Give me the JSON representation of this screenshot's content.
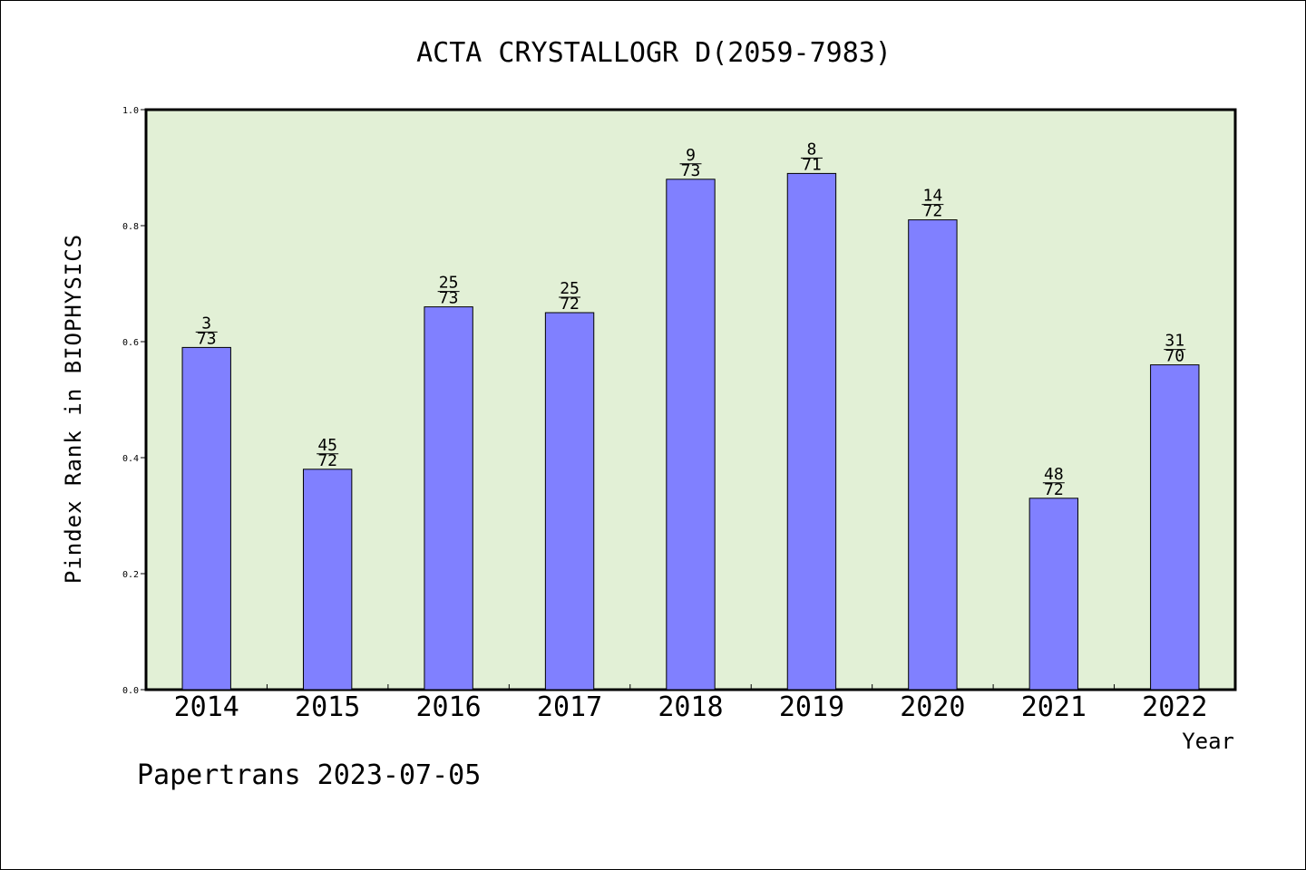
{
  "chart_data": {
    "type": "bar",
    "title": "ACTA CRYSTALLOGR D(2059-7983)",
    "xlabel": "Year",
    "ylabel": "Pindex Rank in BIOPHYSICS",
    "ylim": [
      0,
      1.0
    ],
    "yticks": [
      "0.0",
      "0.2",
      "0.4",
      "0.6",
      "0.8",
      "1.0"
    ],
    "grid": false,
    "categories": [
      "2014",
      "2015",
      "2016",
      "2017",
      "2018",
      "2019",
      "2020",
      "2021",
      "2022"
    ],
    "values": [
      0.59,
      0.38,
      0.66,
      0.65,
      0.88,
      0.89,
      0.81,
      0.33,
      0.56
    ],
    "ranks": [
      "3",
      "45",
      "25",
      "25",
      "9",
      "8",
      "14",
      "48",
      "31"
    ],
    "totals": [
      "73",
      "72",
      "73",
      "72",
      "73",
      "71",
      "72",
      "72",
      "70"
    ],
    "colors": {
      "bar_fill": "#8080ff",
      "plot_background": "#e2f0d6",
      "axis": "#000000"
    }
  },
  "footer": "Papertrans 2023-07-05"
}
